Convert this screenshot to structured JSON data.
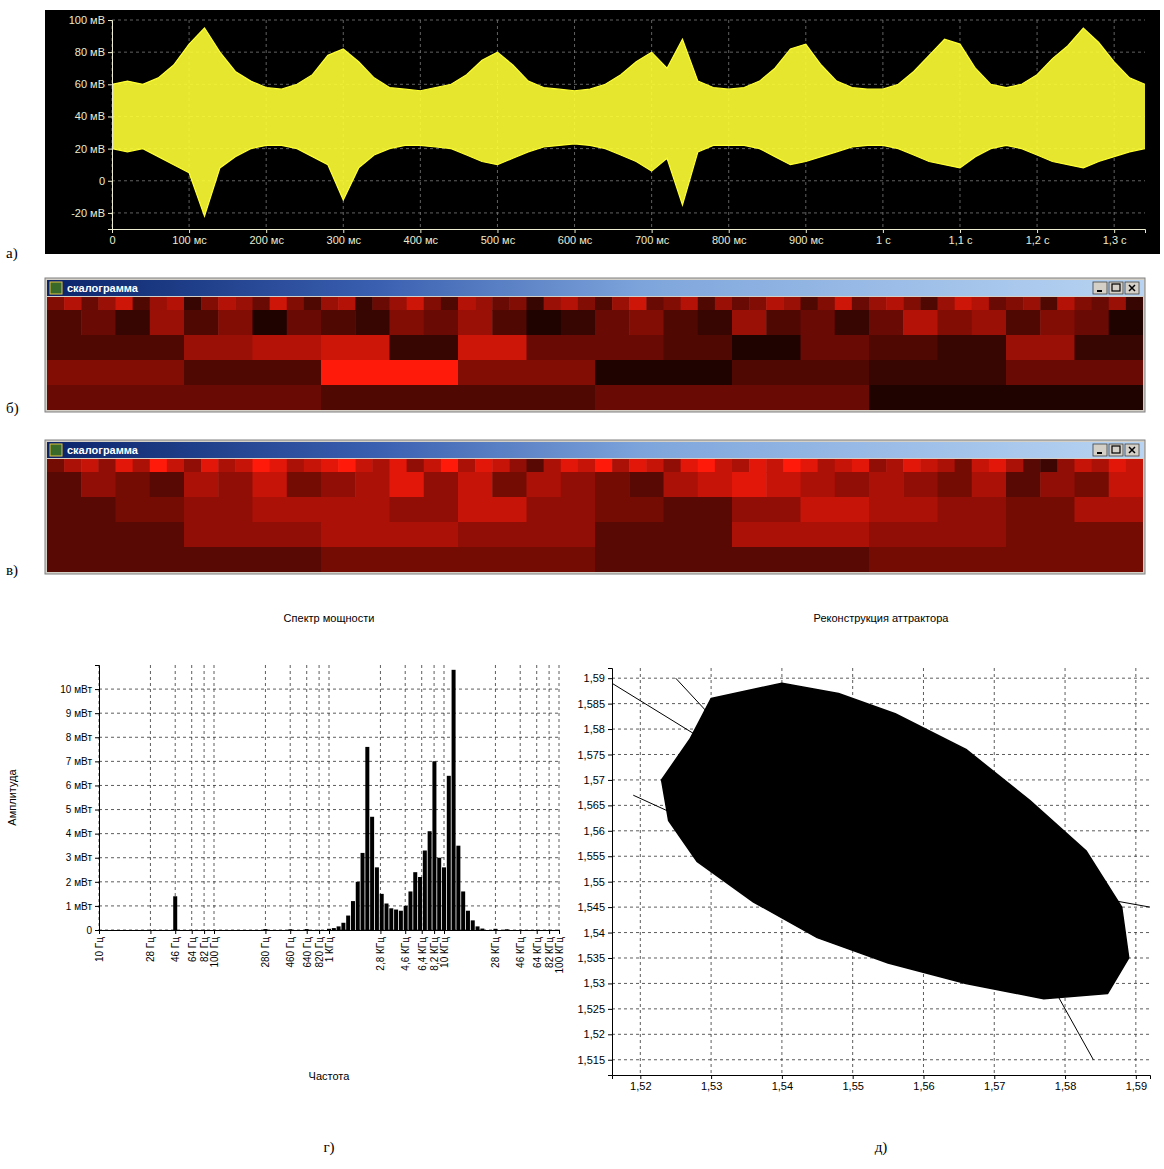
{
  "chart_data": [
    {
      "type": "line",
      "panel": "а)",
      "x": [
        0,
        20,
        40,
        60,
        80,
        100,
        120,
        140,
        160,
        180,
        200,
        220,
        240,
        260,
        280,
        300,
        320,
        340,
        360,
        380,
        400,
        420,
        440,
        460,
        480,
        500,
        520,
        540,
        560,
        580,
        600,
        620,
        640,
        660,
        680,
        700,
        720,
        740,
        760,
        780,
        800,
        820,
        840,
        860,
        880,
        900,
        920,
        940,
        960,
        980,
        1000,
        1020,
        1040,
        1060,
        1080,
        1100,
        1120,
        1140,
        1160,
        1180,
        1200,
        1220,
        1240,
        1260,
        1280,
        1300,
        1320,
        1340
      ],
      "series": [
        {
          "color": "#ffff33",
          "values": [
            60,
            62,
            60,
            64,
            72,
            85,
            95,
            80,
            68,
            62,
            58,
            57,
            60,
            66,
            78,
            82,
            74,
            64,
            58,
            57,
            56,
            58,
            60,
            66,
            75,
            80,
            72,
            62,
            58,
            57,
            56,
            57,
            60,
            66,
            74,
            80,
            70,
            88,
            62,
            58,
            57,
            58,
            62,
            70,
            82,
            85,
            72,
            62,
            58,
            57,
            57,
            60,
            68,
            78,
            88,
            85,
            70,
            60,
            58,
            60,
            66,
            76,
            84,
            95,
            86,
            74,
            64,
            60
          ]
        },
        {
          "color": "#ffff33",
          "values": [
            20,
            18,
            20,
            15,
            10,
            5,
            -22,
            8,
            15,
            20,
            22,
            22,
            20,
            15,
            10,
            -12,
            8,
            16,
            20,
            22,
            22,
            21,
            20,
            16,
            12,
            10,
            14,
            18,
            21,
            22,
            23,
            22,
            20,
            16,
            12,
            6,
            14,
            -15,
            18,
            22,
            22,
            22,
            20,
            15,
            10,
            12,
            15,
            18,
            21,
            22,
            22,
            20,
            16,
            12,
            10,
            8,
            15,
            20,
            22,
            20,
            16,
            12,
            10,
            8,
            12,
            15,
            18,
            20
          ]
        }
      ],
      "xlim": [
        0,
        1340
      ],
      "xticks": [
        0,
        {
          "value": 100,
          "label": "100 мс"
        },
        {
          "value": 200,
          "label": "200 мс"
        },
        {
          "value": 300,
          "label": "300 мс"
        },
        {
          "value": 400,
          "label": "400 мс"
        },
        {
          "value": 500,
          "label": "500 мс"
        },
        {
          "value": 600,
          "label": "600 мс"
        },
        {
          "value": 700,
          "label": "700 мс"
        },
        {
          "value": 800,
          "label": "800 мс"
        },
        {
          "value": 900,
          "label": "900 мс"
        },
        {
          "value": 1000,
          "label": "1 с"
        },
        {
          "value": 1100,
          "label": "1,1 с"
        },
        {
          "value": 1200,
          "label": "1,2 с"
        },
        {
          "value": 1300,
          "label": "1,3 с"
        }
      ],
      "ylim": [
        -30,
        100
      ],
      "yticks": [
        {
          "value": -20,
          "label": "-20 мВ"
        },
        0,
        {
          "value": 20,
          "label": "20 мВ"
        },
        {
          "value": 40,
          "label": "40 мВ"
        },
        {
          "value": 60,
          "label": "60 мВ"
        },
        {
          "value": 80,
          "label": "80 мВ"
        },
        {
          "value": 100,
          "label": "100 мВ"
        }
      ],
      "grid": true
    },
    {
      "type": "heatmap",
      "panel": "б)",
      "title": "скалограмма",
      "cells": [
        [
          5,
          7,
          4,
          6,
          8,
          3,
          6,
          7,
          2,
          5,
          7,
          6,
          4,
          8,
          5,
          3,
          6,
          7,
          2,
          4,
          6,
          8,
          5,
          3,
          7,
          6,
          4,
          5,
          2,
          6,
          7,
          5,
          3,
          6,
          8,
          4,
          5,
          7,
          3,
          6,
          4,
          5,
          7,
          6,
          3,
          5,
          8,
          4,
          6,
          7,
          5,
          3,
          6,
          8,
          7,
          4,
          5,
          6,
          3,
          7,
          5,
          4,
          6,
          2
        ],
        [
          3,
          4,
          2,
          6,
          3,
          5,
          1,
          4,
          3,
          2,
          5,
          4,
          6,
          3,
          1,
          2,
          4,
          5,
          3,
          2,
          6,
          3,
          4,
          2,
          4,
          7,
          5,
          6,
          3,
          5,
          4,
          1
        ],
        [
          3,
          3,
          6,
          7,
          8,
          2,
          8,
          4,
          4,
          3,
          1,
          4,
          3,
          2,
          6,
          2
        ],
        [
          5,
          3,
          10,
          5,
          1,
          3,
          2,
          4
        ],
        [
          4,
          3,
          4,
          1
        ]
      ]
    },
    {
      "type": "heatmap",
      "panel": "в)",
      "title": "скалограмма",
      "cells": [
        [
          4,
          6,
          7,
          5,
          8,
          6,
          9,
          7,
          5,
          8,
          6,
          7,
          9,
          8,
          6,
          7,
          8,
          9,
          7,
          6,
          8,
          5,
          7,
          9,
          6,
          8,
          7,
          5,
          3,
          6,
          8,
          7,
          9,
          6,
          8,
          7,
          5,
          8,
          9,
          7,
          6,
          8,
          7,
          9,
          8,
          6,
          7,
          8,
          5,
          6,
          8,
          7,
          6,
          4,
          7,
          8,
          6,
          3,
          2,
          5,
          7,
          6,
          8,
          7
        ],
        [
          3,
          5,
          4,
          3,
          6,
          5,
          7,
          4,
          5,
          6,
          8,
          5,
          7,
          4,
          6,
          5,
          4,
          3,
          6,
          7,
          8,
          7,
          6,
          5,
          6,
          5,
          4,
          6,
          3,
          5,
          4,
          7
        ],
        [
          3,
          4,
          5,
          6,
          6,
          5,
          7,
          5,
          4,
          3,
          5,
          7,
          6,
          5,
          4,
          6
        ],
        [
          3,
          5,
          6,
          5,
          3,
          6,
          5,
          4
        ],
        [
          3,
          4,
          3,
          4
        ]
      ]
    },
    {
      "type": "bar",
      "panel": "г)",
      "title": "Спектр мощности",
      "xlabel": "Частота",
      "ylabel": "Амплитуда",
      "x": [
        46,
        280,
        460,
        640,
        1000,
        1101,
        1212,
        1334,
        1468,
        1616,
        1778,
        1957,
        2154,
        2371,
        2610,
        2873,
        3162,
        3481,
        3831,
        4217,
        4642,
        5109,
        5623,
        6190,
        6813,
        7499,
        8254,
        9085,
        10000,
        11007,
        12115,
        13335,
        14678,
        16156,
        17783,
        19573,
        21544,
        28000,
        35000
      ],
      "values": [
        1.4,
        0.04,
        0.03,
        0.04,
        0.05,
        0.08,
        0.15,
        0.3,
        0.6,
        1.2,
        2.0,
        3.2,
        7.6,
        4.7,
        2.6,
        1.5,
        1.1,
        0.9,
        0.85,
        0.8,
        1.0,
        1.6,
        2.4,
        2.2,
        3.3,
        4.1,
        7.0,
        3.0,
        2.6,
        6.4,
        10.8,
        3.5,
        1.6,
        0.8,
        0.4,
        0.15,
        0.06,
        0.05,
        0.03
      ],
      "color": "#000000",
      "log": "x",
      "xlim": [
        10,
        100000
      ],
      "xticks": [
        {
          "value": 10,
          "label": "10 Гц"
        },
        {
          "value": 28,
          "label": "28 Гц"
        },
        {
          "value": 46,
          "label": "46 Гц"
        },
        {
          "value": 64,
          "label": "64 Гц"
        },
        {
          "value": 82,
          "label": "82 Гц"
        },
        {
          "value": 100,
          "label": "100 Гц"
        },
        {
          "value": 280,
          "label": "280 Гц"
        },
        {
          "value": 460,
          "label": "460 Гц"
        },
        {
          "value": 640,
          "label": "640 Гц"
        },
        {
          "value": 820,
          "label": "820 Гц"
        },
        {
          "value": 1000,
          "label": "1 КГц"
        },
        {
          "value": 2800,
          "label": "2,8 КГц"
        },
        {
          "value": 4600,
          "label": "4,6 КГц"
        },
        {
          "value": 6400,
          "label": "6,4 КГц"
        },
        {
          "value": 8200,
          "label": "8,2 КГц"
        },
        {
          "value": 10000,
          "label": "10 КГц"
        },
        {
          "value": 28000,
          "label": "28 КГц"
        },
        {
          "value": 46000,
          "label": "46 КГц"
        },
        {
          "value": 64000,
          "label": "64 КГц"
        },
        {
          "value": 82000,
          "label": "82 КГц"
        },
        {
          "value": 100000,
          "label": "100 КГц"
        }
      ],
      "ylim": [
        0,
        11
      ],
      "yticks": [
        0,
        {
          "value": 1,
          "label": "1 мВт"
        },
        {
          "value": 2,
          "label": "2 мВт"
        },
        {
          "value": 3,
          "label": "3 мВт"
        },
        {
          "value": 4,
          "label": "4 мВт"
        },
        {
          "value": 5,
          "label": "5 мВт"
        },
        {
          "value": 6,
          "label": "6 мВт"
        },
        {
          "value": 7,
          "label": "7 мВт"
        },
        {
          "value": 8,
          "label": "8 мВт"
        },
        {
          "value": 9,
          "label": "9 мВт"
        },
        {
          "value": 10,
          "label": "10 мВт"
        }
      ],
      "grid": true
    },
    {
      "type": "line",
      "panel": "д)",
      "title": "Реконструкция аттрактора",
      "series": [
        {
          "type": "area",
          "color": "#000000",
          "x": [
            1.527,
            1.53,
            1.54,
            1.548,
            1.556,
            1.566,
            1.575,
            1.583,
            1.588,
            1.589,
            1.586,
            1.577,
            1.566,
            1.555,
            1.545,
            1.536,
            1.528,
            1.524,
            1.523
          ],
          "values": [
            1.578,
            1.586,
            1.589,
            1.587,
            1.583,
            1.576,
            1.566,
            1.556,
            1.545,
            1.535,
            1.528,
            1.527,
            1.53,
            1.534,
            1.539,
            1.546,
            1.554,
            1.562,
            1.57
          ]
        },
        {
          "type": "line",
          "color": "#000000",
          "x": [
            1.516,
            1.53,
            null,
            1.525,
            1.535,
            null,
            1.592,
            1.58,
            null,
            1.584,
            1.578,
            null,
            1.519,
            1.53
          ],
          "values": [
            1.589,
            1.577,
            null,
            1.59,
            1.575,
            null,
            1.545,
            1.548,
            null,
            1.515,
            1.53,
            null,
            1.567,
            1.56
          ]
        }
      ],
      "xlim": [
        1.516,
        1.592
      ],
      "xticks": [
        {
          "value": 1.52,
          "label": "1,52"
        },
        {
          "value": 1.53,
          "label": "1,53"
        },
        {
          "value": 1.54,
          "label": "1,54"
        },
        {
          "value": 1.55,
          "label": "1,55"
        },
        {
          "value": 1.56,
          "label": "1,56"
        },
        {
          "value": 1.57,
          "label": "1,57"
        },
        {
          "value": 1.58,
          "label": "1,58"
        },
        {
          "value": 1.59,
          "label": "1,59"
        }
      ],
      "ylim": [
        1.512,
        1.592
      ],
      "yticks": [
        {
          "value": 1.515,
          "label": "1,515"
        },
        {
          "value": 1.52,
          "label": "1,52"
        },
        {
          "value": 1.525,
          "label": "1,525"
        },
        {
          "value": 1.53,
          "label": "1,53"
        },
        {
          "value": 1.535,
          "label": "1,535"
        },
        {
          "value": 1.54,
          "label": "1,54"
        },
        {
          "value": 1.545,
          "label": "1,545"
        },
        {
          "value": 1.55,
          "label": "1,55"
        },
        {
          "value": 1.555,
          "label": "1,555"
        },
        {
          "value": 1.56,
          "label": "1,56"
        },
        {
          "value": 1.565,
          "label": "1,565"
        },
        {
          "value": 1.57,
          "label": "1,57"
        },
        {
          "value": 1.575,
          "label": "1,575"
        },
        {
          "value": 1.58,
          "label": "1,58"
        },
        {
          "value": 1.585,
          "label": "1,585"
        },
        {
          "value": 1.59,
          "label": "1,59"
        }
      ],
      "grid": true
    }
  ]
}
